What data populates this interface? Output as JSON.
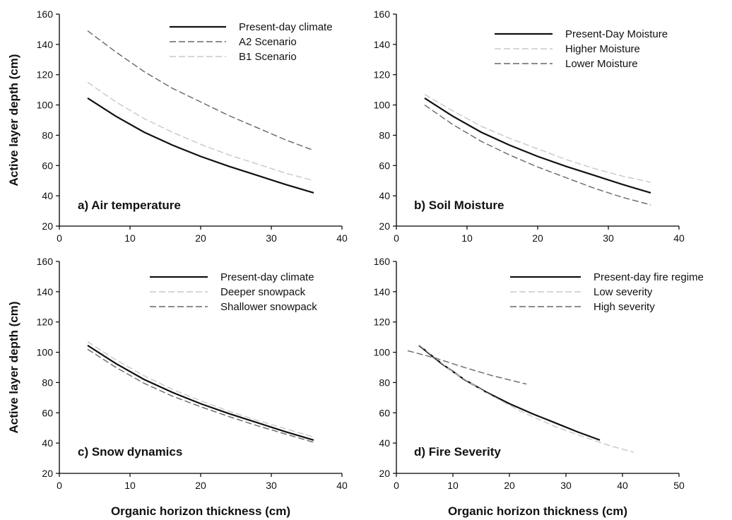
{
  "figure": {
    "ylabel": "Active layer depth (cm)",
    "xlabel": "Organic horizon thickness (cm)"
  },
  "style": {
    "present_color": "#111111",
    "dash_dark_color": "#666666",
    "light_color": "#c8c8c8"
  },
  "chart_data": [
    {
      "type": "line",
      "panel_label": "a) Air temperature",
      "xlabel": "",
      "ylabel": "Active layer depth (cm)",
      "xlim": [
        0,
        40
      ],
      "ylim": [
        20,
        160
      ],
      "xticks": [
        0,
        10,
        20,
        30,
        40
      ],
      "yticks": [
        20,
        40,
        60,
        80,
        100,
        120,
        140,
        160
      ],
      "legend_position": "top-right",
      "series": [
        {
          "name": "Present-day climate",
          "style": "solid",
          "x": [
            4,
            8,
            12,
            16,
            20,
            24,
            28,
            32,
            36
          ],
          "y": [
            104.5,
            92.5,
            82,
            73.5,
            66,
            59.5,
            53.5,
            47.5,
            42
          ]
        },
        {
          "name": "A2 Scenario",
          "style": "dash-dark",
          "x": [
            4,
            8,
            12,
            16,
            20,
            24,
            28,
            32,
            36
          ],
          "y": [
            149,
            135,
            122,
            111,
            102,
            93,
            85,
            77,
            70
          ]
        },
        {
          "name": "B1 Scenario",
          "style": "dash-light",
          "x": [
            4,
            8,
            12,
            16,
            20,
            24,
            28,
            32,
            36
          ],
          "y": [
            115,
            102,
            91,
            82,
            74,
            67,
            61,
            55,
            50
          ]
        }
      ]
    },
    {
      "type": "line",
      "panel_label": "b) Soil Moisture",
      "xlabel": "",
      "ylabel": "",
      "xlim": [
        0,
        40
      ],
      "ylim": [
        20,
        160
      ],
      "xticks": [
        0,
        10,
        20,
        30,
        40
      ],
      "yticks": [
        20,
        40,
        60,
        80,
        100,
        120,
        140,
        160
      ],
      "legend_position": "top-right",
      "series": [
        {
          "name": "Present-Day Moisture",
          "style": "solid",
          "x": [
            4,
            8,
            12,
            16,
            20,
            24,
            28,
            32,
            36
          ],
          "y": [
            104.5,
            92.5,
            82,
            73.5,
            66,
            59.5,
            53.5,
            47.5,
            42
          ]
        },
        {
          "name": "Higher Moisture",
          "style": "dash-light",
          "x": [
            4,
            8,
            12,
            16,
            20,
            24,
            28,
            32,
            36
          ],
          "y": [
            107,
            96,
            86,
            78,
            71,
            64,
            58,
            53,
            49
          ]
        },
        {
          "name": "Lower Moisture",
          "style": "dash-dark",
          "x": [
            4,
            8,
            12,
            16,
            20,
            24,
            28,
            32,
            36
          ],
          "y": [
            100,
            87,
            76,
            67,
            59,
            52,
            45,
            39,
            34
          ]
        }
      ]
    },
    {
      "type": "line",
      "panel_label": "c) Snow dynamics",
      "xlabel": "Organic horizon thickness (cm)",
      "ylabel": "Active layer depth (cm)",
      "xlim": [
        0,
        40
      ],
      "ylim": [
        20,
        160
      ],
      "xticks": [
        0,
        10,
        20,
        30,
        40
      ],
      "yticks": [
        20,
        40,
        60,
        80,
        100,
        120,
        140,
        160
      ],
      "legend_position": "top-right",
      "series": [
        {
          "name": "Present-day climate",
          "style": "solid",
          "x": [
            4,
            8,
            12,
            16,
            20,
            24,
            28,
            32,
            36
          ],
          "y": [
            104.5,
            92.5,
            82,
            73.5,
            66,
            59.5,
            53.5,
            47.5,
            42
          ]
        },
        {
          "name": "Deeper snowpack",
          "style": "dash-light",
          "x": [
            4,
            8,
            12,
            16,
            20,
            24,
            28,
            32,
            36
          ],
          "y": [
            107,
            95,
            84.5,
            75.5,
            68,
            61,
            55,
            49.5,
            44
          ]
        },
        {
          "name": "Shallower snowpack",
          "style": "dash-dark",
          "x": [
            4,
            8,
            12,
            16,
            20,
            24,
            28,
            32,
            36
          ],
          "y": [
            102,
            90,
            79.5,
            71,
            64,
            57.5,
            51.5,
            46,
            40.5
          ]
        }
      ]
    },
    {
      "type": "line",
      "panel_label": "d) Fire Severity",
      "xlabel": "Organic horizon thickness (cm)",
      "ylabel": "",
      "xlim": [
        0,
        50
      ],
      "ylim": [
        20,
        160
      ],
      "xticks": [
        0,
        10,
        20,
        30,
        40,
        50
      ],
      "yticks": [
        20,
        40,
        60,
        80,
        100,
        120,
        140,
        160
      ],
      "legend_position": "top-right",
      "series": [
        {
          "name": "Present-day fire regime",
          "style": "solid",
          "x": [
            4,
            8,
            12,
            16,
            20,
            24,
            28,
            32,
            36
          ],
          "y": [
            104.5,
            92.5,
            82,
            73.5,
            66,
            59.5,
            53.5,
            47.5,
            42
          ]
        },
        {
          "name": "Low severity",
          "style": "dash-light",
          "x": [
            4,
            10,
            16,
            22,
            28,
            34,
            38,
            42
          ],
          "y": [
            105,
            87,
            73,
            61,
            51,
            43,
            38,
            34
          ]
        },
        {
          "name": "High severity",
          "style": "dash-dark",
          "x": [
            2,
            7,
            12,
            17,
            23
          ],
          "y": [
            101,
            96,
            90,
            84.5,
            79
          ]
        }
      ]
    }
  ]
}
